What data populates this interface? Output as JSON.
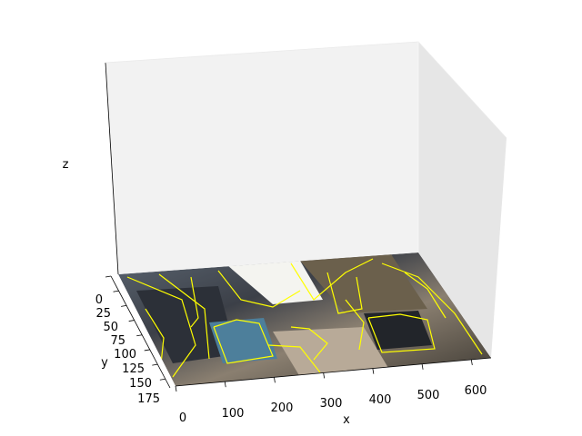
{
  "chart_data": {
    "type": "surface",
    "title": "",
    "xlabel": "x",
    "ylabel": "y",
    "zlabel": "z",
    "x_ticks": [
      "0",
      "100",
      "200",
      "300",
      "400",
      "500",
      "600"
    ],
    "y_ticks": [
      "0",
      "25",
      "50",
      "75",
      "100",
      "125",
      "150",
      "175"
    ],
    "xlim": [
      0,
      640
    ],
    "ylim": [
      0,
      190
    ],
    "grid": false,
    "surface_content": "street photo with yellow edge-detection overlay",
    "colors": {
      "pane_back": "#f2f2f2",
      "pane_side": "#e6e6e6",
      "edge_overlay": "#ffff00"
    }
  }
}
